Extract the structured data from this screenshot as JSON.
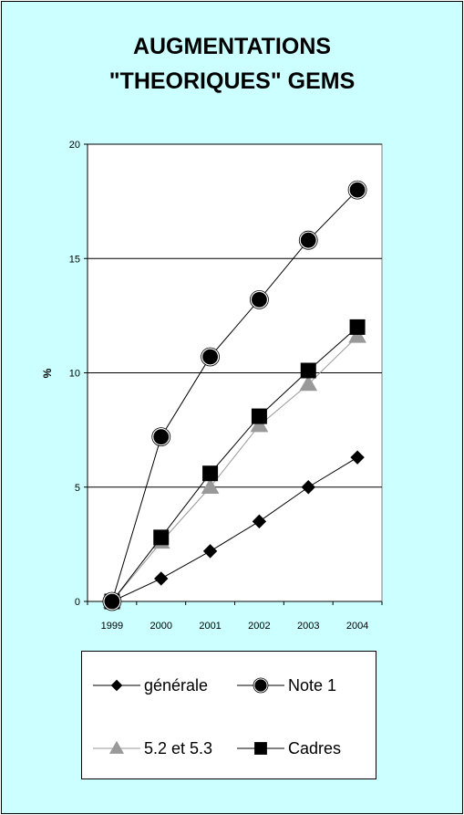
{
  "chart_data": {
    "type": "line",
    "title_lines": [
      "AUGMENTATIONS",
      "\"THEORIQUES\" GEMS"
    ],
    "ylabel": "%",
    "x": [
      "1999",
      "2000",
      "2001",
      "2002",
      "2003",
      "2004"
    ],
    "ylim": [
      0,
      20
    ],
    "yticks": [
      "0",
      "5",
      "10",
      "15",
      "20"
    ],
    "grid": "horizontal",
    "legend_position": "bottom",
    "series": [
      {
        "name": "générale",
        "marker": "diamond",
        "color": "#000000",
        "values": [
          0,
          1.0,
          2.2,
          3.5,
          5.0,
          6.3
        ]
      },
      {
        "name": "Note 1",
        "marker": "circle",
        "color": "#000000",
        "values": [
          0,
          7.2,
          10.7,
          13.2,
          15.8,
          18.0
        ]
      },
      {
        "name": "5.2 et 5.3",
        "marker": "triangle",
        "color": "#999999",
        "values": [
          0,
          2.6,
          5.0,
          7.7,
          9.5,
          11.6
        ]
      },
      {
        "name": "Cadres",
        "marker": "square",
        "color": "#000000",
        "values": [
          0,
          2.8,
          5.6,
          8.1,
          10.1,
          12.0
        ]
      }
    ]
  }
}
